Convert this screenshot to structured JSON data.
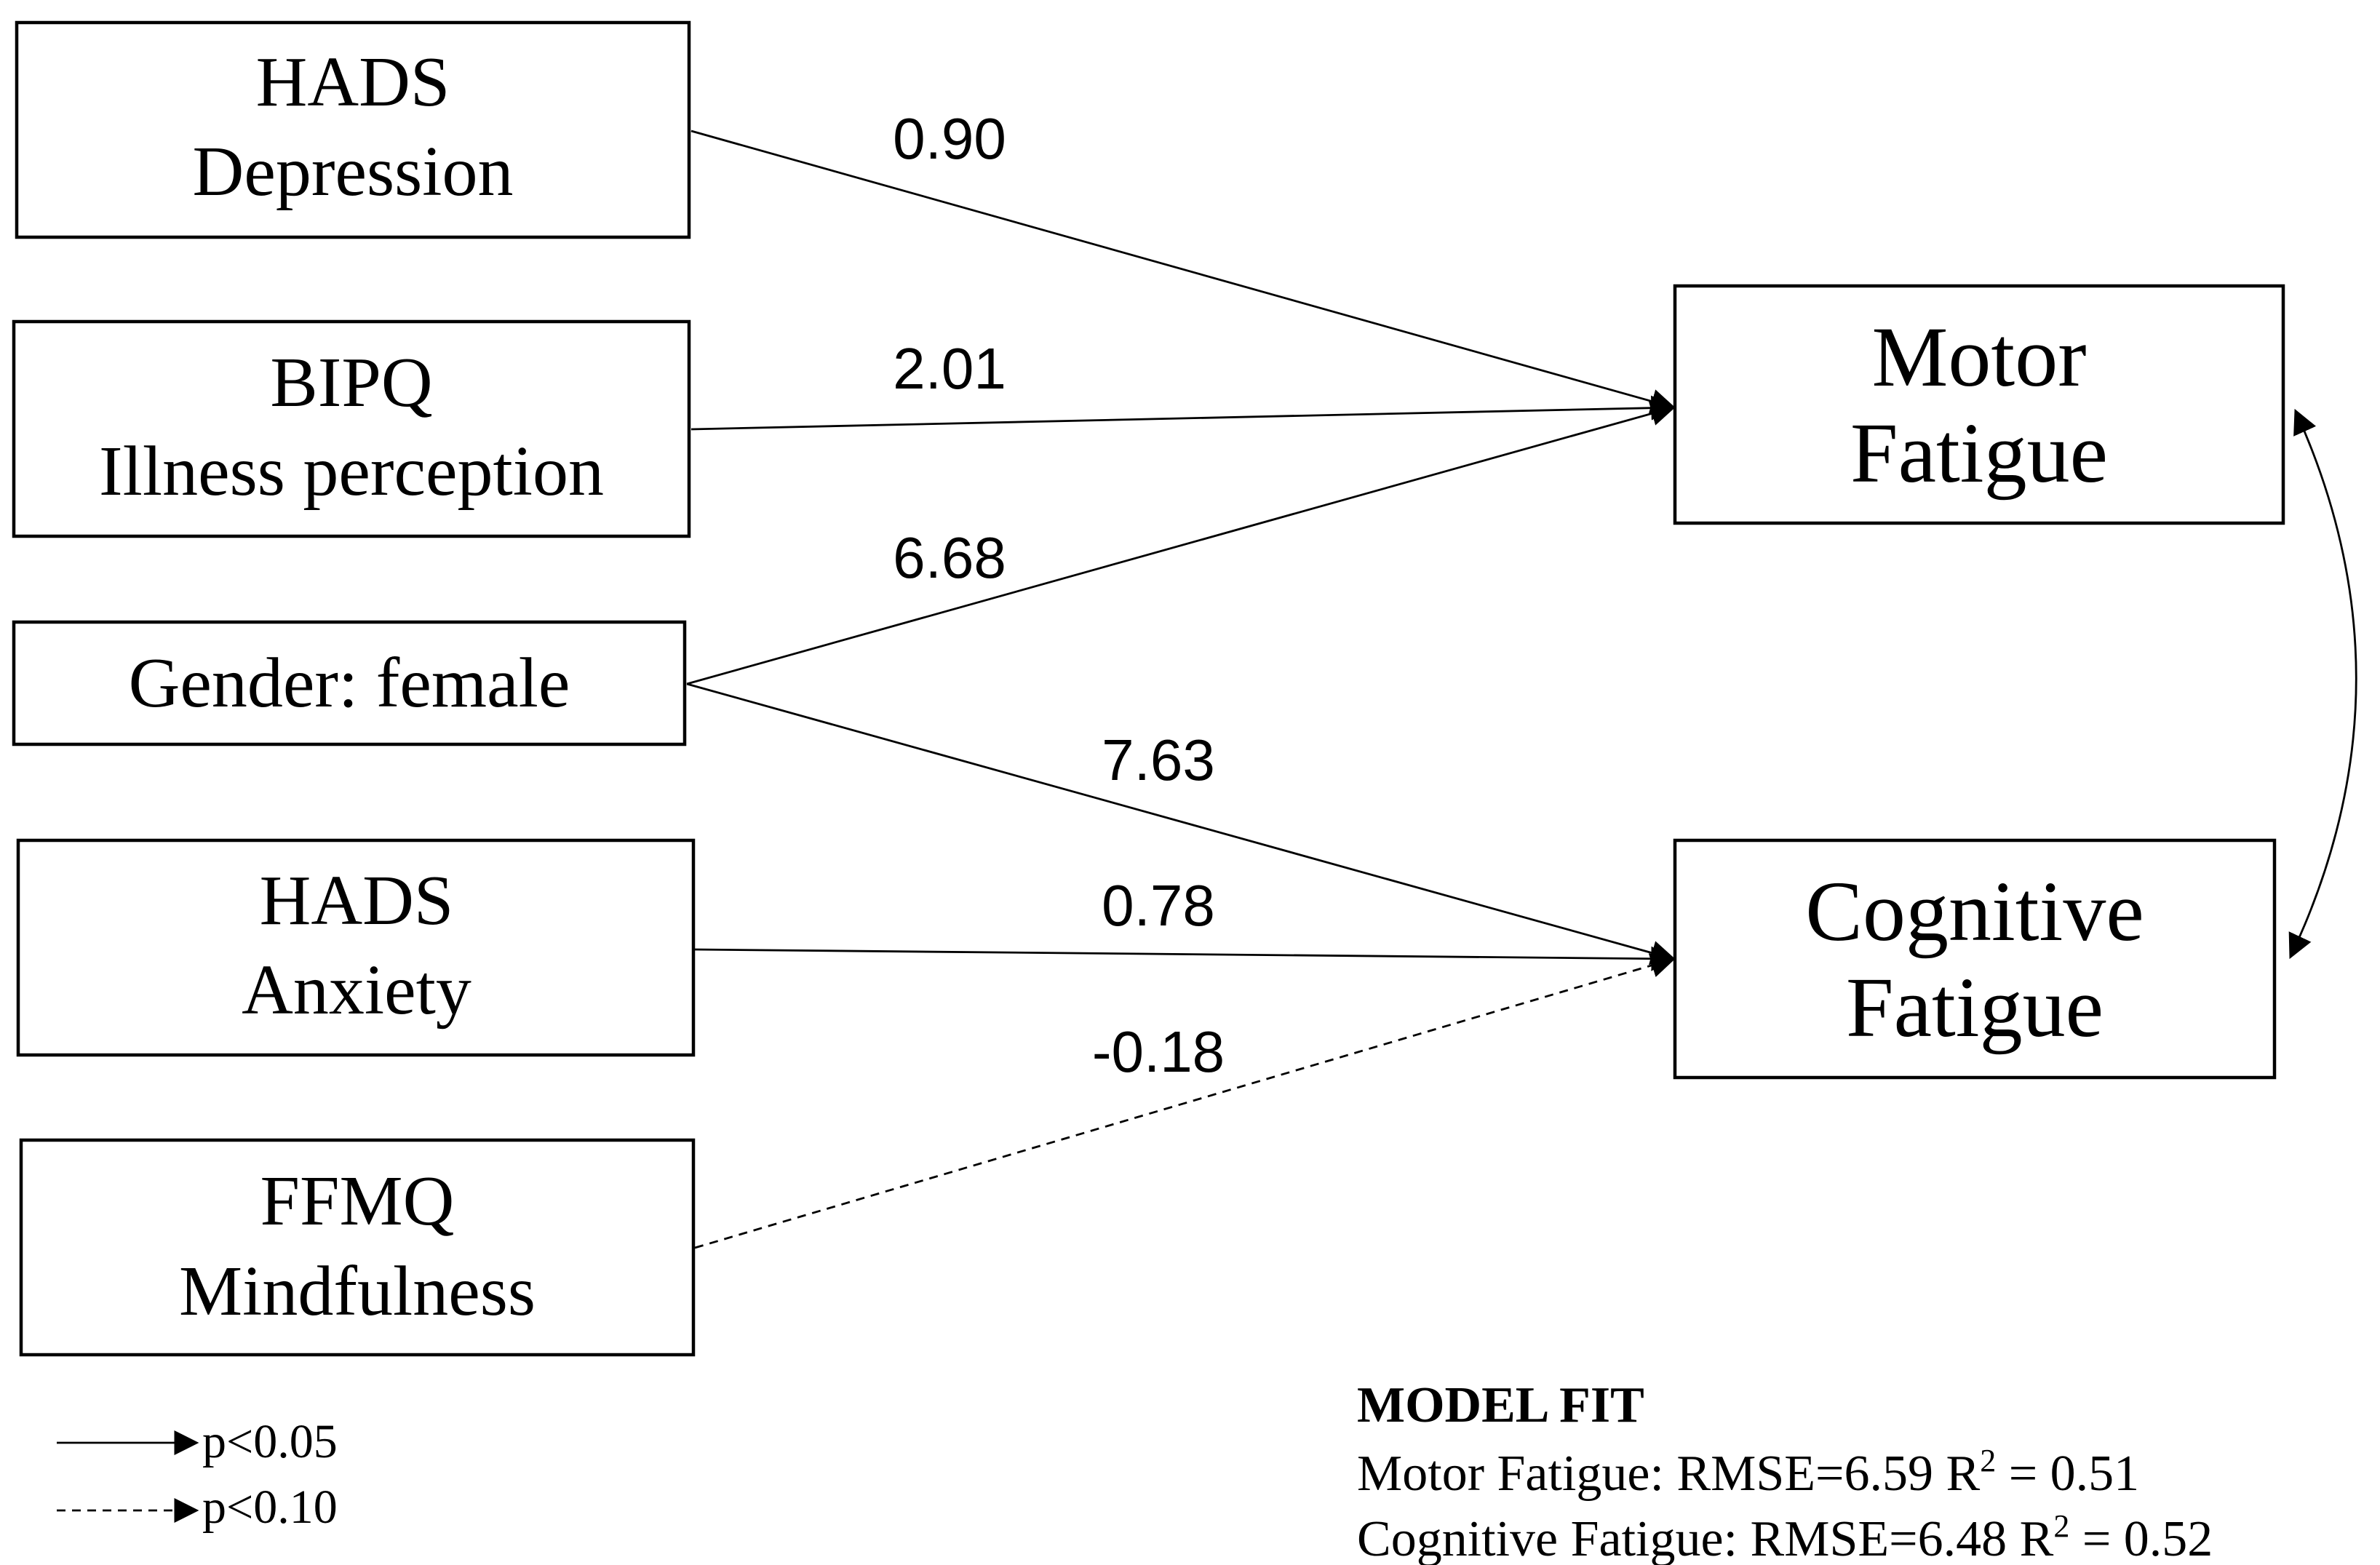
{
  "predictors": {
    "hads_depression": {
      "line1": "HADS",
      "line2": "Depression"
    },
    "bipq": {
      "line1": "BIPQ",
      "line2": "Illness perception"
    },
    "gender": {
      "line1": "Gender: female"
    },
    "hads_anxiety": {
      "line1": "HADS",
      "line2": "Anxiety"
    },
    "ffmq": {
      "line1": "FFMQ",
      "line2": "Mindfulness"
    }
  },
  "outcomes": {
    "motor": {
      "line1": "Motor",
      "line2": "Fatigue"
    },
    "cognitive": {
      "line1": "Cognitive",
      "line2": "Fatigue"
    }
  },
  "paths": [
    {
      "from": "HADS Depression",
      "to": "Motor Fatigue",
      "coefficient": "0.90",
      "significance": "p<0.05"
    },
    {
      "from": "BIPQ Illness perception",
      "to": "Motor Fatigue",
      "coefficient": "2.01",
      "significance": "p<0.05"
    },
    {
      "from": "Gender: female",
      "to": "Motor Fatigue",
      "coefficient": "6.68",
      "significance": "p<0.05"
    },
    {
      "from": "Gender: female",
      "to": "Cognitive Fatigue",
      "coefficient": "7.63",
      "significance": "p<0.05"
    },
    {
      "from": "HADS Anxiety",
      "to": "Cognitive Fatigue",
      "coefficient": "0.78",
      "significance": "p<0.05"
    },
    {
      "from": "FFMQ Mindfulness",
      "to": "Cognitive Fatigue",
      "coefficient": "-0.18",
      "significance": "p<0.10"
    }
  ],
  "legend": {
    "solid_label": "p<0.05",
    "dashed_label": "p<0.10"
  },
  "model_fit": {
    "title": "MODEL FIT",
    "motor_prefix": "Motor Fatigue: RMSE=6.59 R",
    "motor_suffix": " = 0.51",
    "cognitive_prefix": "Cognitive Fatigue: RMSE=6.48 R",
    "cognitive_suffix": " = 0.52",
    "superscript": "2"
  }
}
